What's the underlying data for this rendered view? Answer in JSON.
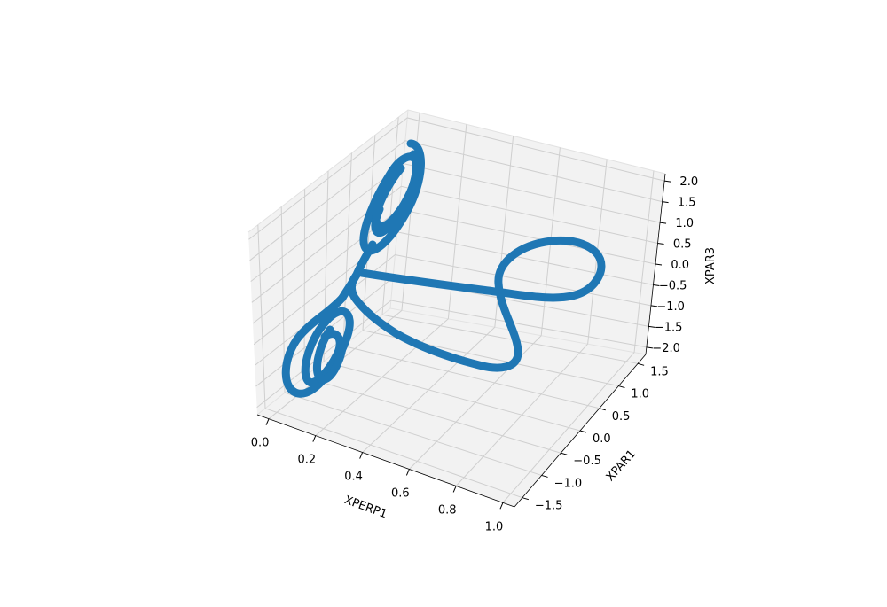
{
  "chart_data": {
    "type": "line",
    "projection": "3d",
    "title": "",
    "grid": true,
    "pane_color": "#f2f2f2",
    "series": [
      {
        "color": "#1f77b4",
        "description": "thick 3D trajectory curve: two tightly wound spirals near XPERP1 = 0.1 (one high, one low in XPAR3) joined by a wide figure-eight loop reaching toward XPERP1 = 0.9"
      }
    ],
    "axes": {
      "x": {
        "label": "XPERP1",
        "range": [
          0.0,
          1.0
        ],
        "ticks": [
          "0.0",
          "0.2",
          "0.4",
          "0.6",
          "0.8",
          "1.0"
        ]
      },
      "y": {
        "label": "XPAR1",
        "range": [
          -1.5,
          1.5
        ],
        "ticks": [
          "−1.5",
          "−1.0",
          "−0.5",
          "0.0",
          "0.5",
          "1.0",
          "1.5"
        ]
      },
      "z": {
        "label": "XPAR3",
        "range": [
          -2.0,
          2.0
        ],
        "ticks": [
          "−2.0",
          "−1.5",
          "−1.0",
          "−0.5",
          "0.0",
          "0.5",
          "1.0",
          "1.5",
          "2.0"
        ]
      }
    }
  }
}
